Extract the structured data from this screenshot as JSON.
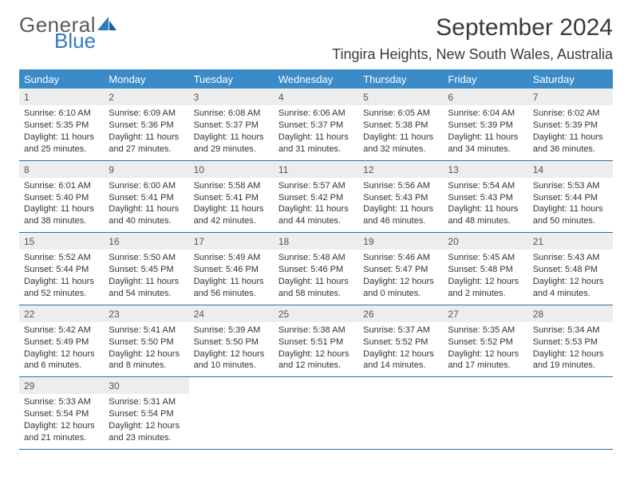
{
  "logo": {
    "text1": "General",
    "text2": "Blue",
    "accent_color": "#2f7bbf",
    "gray_color": "#5a5a5a"
  },
  "title": "September 2024",
  "location": "Tingira Heights, New South Wales, Australia",
  "header_bg": "#3b8bc8",
  "week_border": "#2f6fa8",
  "daynum_bg": "#eceded",
  "day_names": [
    "Sunday",
    "Monday",
    "Tuesday",
    "Wednesday",
    "Thursday",
    "Friday",
    "Saturday"
  ],
  "weeks": [
    [
      {
        "n": "1",
        "sr": "Sunrise: 6:10 AM",
        "ss": "Sunset: 5:35 PM",
        "d1": "Daylight: 11 hours",
        "d2": "and 25 minutes."
      },
      {
        "n": "2",
        "sr": "Sunrise: 6:09 AM",
        "ss": "Sunset: 5:36 PM",
        "d1": "Daylight: 11 hours",
        "d2": "and 27 minutes."
      },
      {
        "n": "3",
        "sr": "Sunrise: 6:08 AM",
        "ss": "Sunset: 5:37 PM",
        "d1": "Daylight: 11 hours",
        "d2": "and 29 minutes."
      },
      {
        "n": "4",
        "sr": "Sunrise: 6:06 AM",
        "ss": "Sunset: 5:37 PM",
        "d1": "Daylight: 11 hours",
        "d2": "and 31 minutes."
      },
      {
        "n": "5",
        "sr": "Sunrise: 6:05 AM",
        "ss": "Sunset: 5:38 PM",
        "d1": "Daylight: 11 hours",
        "d2": "and 32 minutes."
      },
      {
        "n": "6",
        "sr": "Sunrise: 6:04 AM",
        "ss": "Sunset: 5:39 PM",
        "d1": "Daylight: 11 hours",
        "d2": "and 34 minutes."
      },
      {
        "n": "7",
        "sr": "Sunrise: 6:02 AM",
        "ss": "Sunset: 5:39 PM",
        "d1": "Daylight: 11 hours",
        "d2": "and 36 minutes."
      }
    ],
    [
      {
        "n": "8",
        "sr": "Sunrise: 6:01 AM",
        "ss": "Sunset: 5:40 PM",
        "d1": "Daylight: 11 hours",
        "d2": "and 38 minutes."
      },
      {
        "n": "9",
        "sr": "Sunrise: 6:00 AM",
        "ss": "Sunset: 5:41 PM",
        "d1": "Daylight: 11 hours",
        "d2": "and 40 minutes."
      },
      {
        "n": "10",
        "sr": "Sunrise: 5:58 AM",
        "ss": "Sunset: 5:41 PM",
        "d1": "Daylight: 11 hours",
        "d2": "and 42 minutes."
      },
      {
        "n": "11",
        "sr": "Sunrise: 5:57 AM",
        "ss": "Sunset: 5:42 PM",
        "d1": "Daylight: 11 hours",
        "d2": "and 44 minutes."
      },
      {
        "n": "12",
        "sr": "Sunrise: 5:56 AM",
        "ss": "Sunset: 5:43 PM",
        "d1": "Daylight: 11 hours",
        "d2": "and 46 minutes."
      },
      {
        "n": "13",
        "sr": "Sunrise: 5:54 AM",
        "ss": "Sunset: 5:43 PM",
        "d1": "Daylight: 11 hours",
        "d2": "and 48 minutes."
      },
      {
        "n": "14",
        "sr": "Sunrise: 5:53 AM",
        "ss": "Sunset: 5:44 PM",
        "d1": "Daylight: 11 hours",
        "d2": "and 50 minutes."
      }
    ],
    [
      {
        "n": "15",
        "sr": "Sunrise: 5:52 AM",
        "ss": "Sunset: 5:44 PM",
        "d1": "Daylight: 11 hours",
        "d2": "and 52 minutes."
      },
      {
        "n": "16",
        "sr": "Sunrise: 5:50 AM",
        "ss": "Sunset: 5:45 PM",
        "d1": "Daylight: 11 hours",
        "d2": "and 54 minutes."
      },
      {
        "n": "17",
        "sr": "Sunrise: 5:49 AM",
        "ss": "Sunset: 5:46 PM",
        "d1": "Daylight: 11 hours",
        "d2": "and 56 minutes."
      },
      {
        "n": "18",
        "sr": "Sunrise: 5:48 AM",
        "ss": "Sunset: 5:46 PM",
        "d1": "Daylight: 11 hours",
        "d2": "and 58 minutes."
      },
      {
        "n": "19",
        "sr": "Sunrise: 5:46 AM",
        "ss": "Sunset: 5:47 PM",
        "d1": "Daylight: 12 hours",
        "d2": "and 0 minutes."
      },
      {
        "n": "20",
        "sr": "Sunrise: 5:45 AM",
        "ss": "Sunset: 5:48 PM",
        "d1": "Daylight: 12 hours",
        "d2": "and 2 minutes."
      },
      {
        "n": "21",
        "sr": "Sunrise: 5:43 AM",
        "ss": "Sunset: 5:48 PM",
        "d1": "Daylight: 12 hours",
        "d2": "and 4 minutes."
      }
    ],
    [
      {
        "n": "22",
        "sr": "Sunrise: 5:42 AM",
        "ss": "Sunset: 5:49 PM",
        "d1": "Daylight: 12 hours",
        "d2": "and 6 minutes."
      },
      {
        "n": "23",
        "sr": "Sunrise: 5:41 AM",
        "ss": "Sunset: 5:50 PM",
        "d1": "Daylight: 12 hours",
        "d2": "and 8 minutes."
      },
      {
        "n": "24",
        "sr": "Sunrise: 5:39 AM",
        "ss": "Sunset: 5:50 PM",
        "d1": "Daylight: 12 hours",
        "d2": "and 10 minutes."
      },
      {
        "n": "25",
        "sr": "Sunrise: 5:38 AM",
        "ss": "Sunset: 5:51 PM",
        "d1": "Daylight: 12 hours",
        "d2": "and 12 minutes."
      },
      {
        "n": "26",
        "sr": "Sunrise: 5:37 AM",
        "ss": "Sunset: 5:52 PM",
        "d1": "Daylight: 12 hours",
        "d2": "and 14 minutes."
      },
      {
        "n": "27",
        "sr": "Sunrise: 5:35 AM",
        "ss": "Sunset: 5:52 PM",
        "d1": "Daylight: 12 hours",
        "d2": "and 17 minutes."
      },
      {
        "n": "28",
        "sr": "Sunrise: 5:34 AM",
        "ss": "Sunset: 5:53 PM",
        "d1": "Daylight: 12 hours",
        "d2": "and 19 minutes."
      }
    ],
    [
      {
        "n": "29",
        "sr": "Sunrise: 5:33 AM",
        "ss": "Sunset: 5:54 PM",
        "d1": "Daylight: 12 hours",
        "d2": "and 21 minutes."
      },
      {
        "n": "30",
        "sr": "Sunrise: 5:31 AM",
        "ss": "Sunset: 5:54 PM",
        "d1": "Daylight: 12 hours",
        "d2": "and 23 minutes."
      },
      null,
      null,
      null,
      null,
      null
    ]
  ]
}
